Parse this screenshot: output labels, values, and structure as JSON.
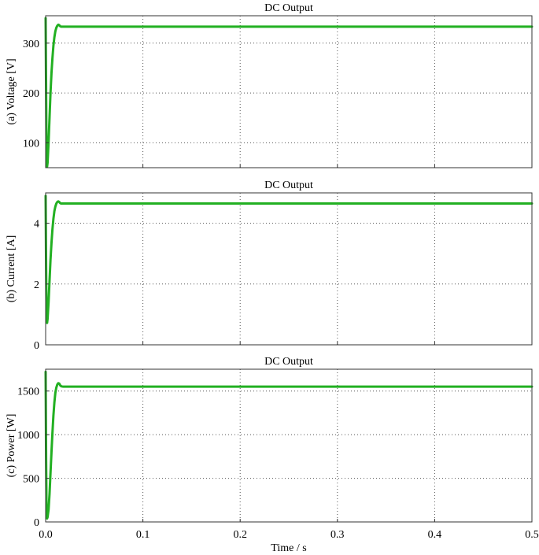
{
  "chart_data": [
    {
      "type": "line",
      "title": "DC Output",
      "ylabel": "(a) Voltage [V]",
      "xlim": [
        0,
        0.5
      ],
      "ylim": [
        50,
        355
      ],
      "xticks": [
        0,
        0.1,
        0.2,
        0.3,
        0.4,
        0.5
      ],
      "yticks": [
        100,
        200,
        300
      ],
      "grid": true,
      "series": [
        {
          "color": "#22b022",
          "x": [
            0,
            0.0005,
            0.001,
            0.0015,
            0.002,
            0.003,
            0.004,
            0.005,
            0.006,
            0.007,
            0.008,
            0.009,
            0.01,
            0.011,
            0.012,
            0.013,
            0.014,
            0.015,
            0.016,
            0.017,
            0.018,
            0.02,
            0.025,
            0.05,
            0.5
          ],
          "y": [
            350,
            200,
            55,
            52,
            60,
            100,
            150,
            200,
            240,
            270,
            295,
            312,
            324,
            331,
            335,
            337,
            336,
            334,
            333,
            333,
            333,
            333,
            333,
            333,
            333
          ]
        }
      ]
    },
    {
      "type": "line",
      "title": "DC Output",
      "ylabel": "(b) Current [A]",
      "xlim": [
        0,
        0.5
      ],
      "ylim": [
        0,
        5
      ],
      "xticks": [
        0,
        0.1,
        0.2,
        0.3,
        0.4,
        0.5
      ],
      "yticks": [
        0,
        2,
        4
      ],
      "grid": true,
      "series": [
        {
          "color": "#22b022",
          "x": [
            0,
            0.0005,
            0.001,
            0.0015,
            0.002,
            0.003,
            0.004,
            0.005,
            0.006,
            0.007,
            0.008,
            0.009,
            0.01,
            0.011,
            0.012,
            0.013,
            0.014,
            0.015,
            0.016,
            0.017,
            0.018,
            0.02,
            0.025,
            0.05,
            0.5
          ],
          "y": [
            4.9,
            2.5,
            0.75,
            0.72,
            0.85,
            1.4,
            2.1,
            2.8,
            3.35,
            3.8,
            4.15,
            4.4,
            4.55,
            4.65,
            4.7,
            4.72,
            4.7,
            4.66,
            4.65,
            4.65,
            4.65,
            4.65,
            4.65,
            4.65,
            4.65
          ]
        }
      ]
    },
    {
      "type": "line",
      "title": "DC Output",
      "ylabel": "(c) Power [W]",
      "xlim": [
        0,
        0.5
      ],
      "ylim": [
        0,
        1750
      ],
      "xticks": [
        0,
        0.1,
        0.2,
        0.3,
        0.4,
        0.5
      ],
      "xticklabels": [
        "0.0",
        "0.1",
        "0.2",
        "0.3",
        "0.4",
        "0.5"
      ],
      "yticks": [
        0,
        500,
        1000,
        1500
      ],
      "xlabel": "Time / s",
      "grid": true,
      "series": [
        {
          "color": "#22b022",
          "x": [
            0,
            0.0005,
            0.001,
            0.0015,
            0.002,
            0.003,
            0.004,
            0.005,
            0.006,
            0.007,
            0.008,
            0.009,
            0.01,
            0.011,
            0.012,
            0.013,
            0.014,
            0.015,
            0.016,
            0.017,
            0.018,
            0.02,
            0.025,
            0.05,
            0.5
          ],
          "y": [
            1720,
            700,
            45,
            40,
            55,
            140,
            320,
            560,
            800,
            1020,
            1220,
            1370,
            1480,
            1540,
            1575,
            1590,
            1585,
            1565,
            1555,
            1552,
            1550,
            1550,
            1550,
            1550,
            1550
          ]
        }
      ]
    }
  ]
}
